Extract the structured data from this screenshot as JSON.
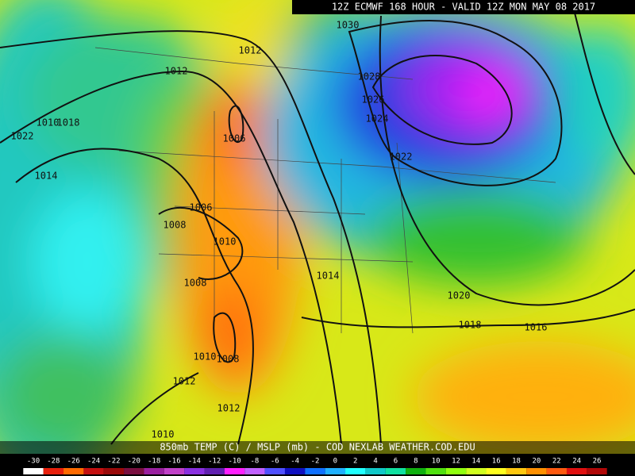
{
  "header": "12Z ECMWF 168 HOUR - VALID 12Z MON MAY 08 2017",
  "footer": "850mb TEMP (C) / MSLP (mb) - COD NEXLAB  WEATHER.COD.EDU",
  "colorbar": {
    "labels": [
      -30,
      -28,
      -26,
      -24,
      -22,
      -20,
      -18,
      -16,
      -14,
      -12,
      -10,
      -8,
      -6,
      -4,
      -2,
      0,
      2,
      4,
      6,
      8,
      10,
      12,
      14,
      16,
      18,
      20,
      22,
      24,
      26
    ],
    "colors": [
      "#ffffff",
      "#e8200c",
      "#ff6a00",
      "#c41010",
      "#9a0a0a",
      "#7a1040",
      "#9a20a0",
      "#c040c8",
      "#8a30e0",
      "#6020b0",
      "#ff20ff",
      "#c060ff",
      "#5050ff",
      "#1010c0",
      "#1070ff",
      "#20b0ff",
      "#20ffff",
      "#10c8c8",
      "#10e0a0",
      "#10b010",
      "#50e010",
      "#90ff10",
      "#d0ff20",
      "#ffff20",
      "#ffc810",
      "#ff9000",
      "#ff5a10",
      "#e01010",
      "#b00808"
    ]
  },
  "isobar_labels": [
    "1030",
    "1012",
    "1012",
    "1028",
    "1026",
    "1024",
    "1010",
    "1018",
    "1022",
    "1006",
    "1022",
    "1014",
    "1006",
    "1008",
    "1010",
    "1014",
    "1008",
    "1020",
    "1018",
    "1016",
    "1010",
    "1008",
    "1012",
    "1012",
    "1010"
  ]
}
